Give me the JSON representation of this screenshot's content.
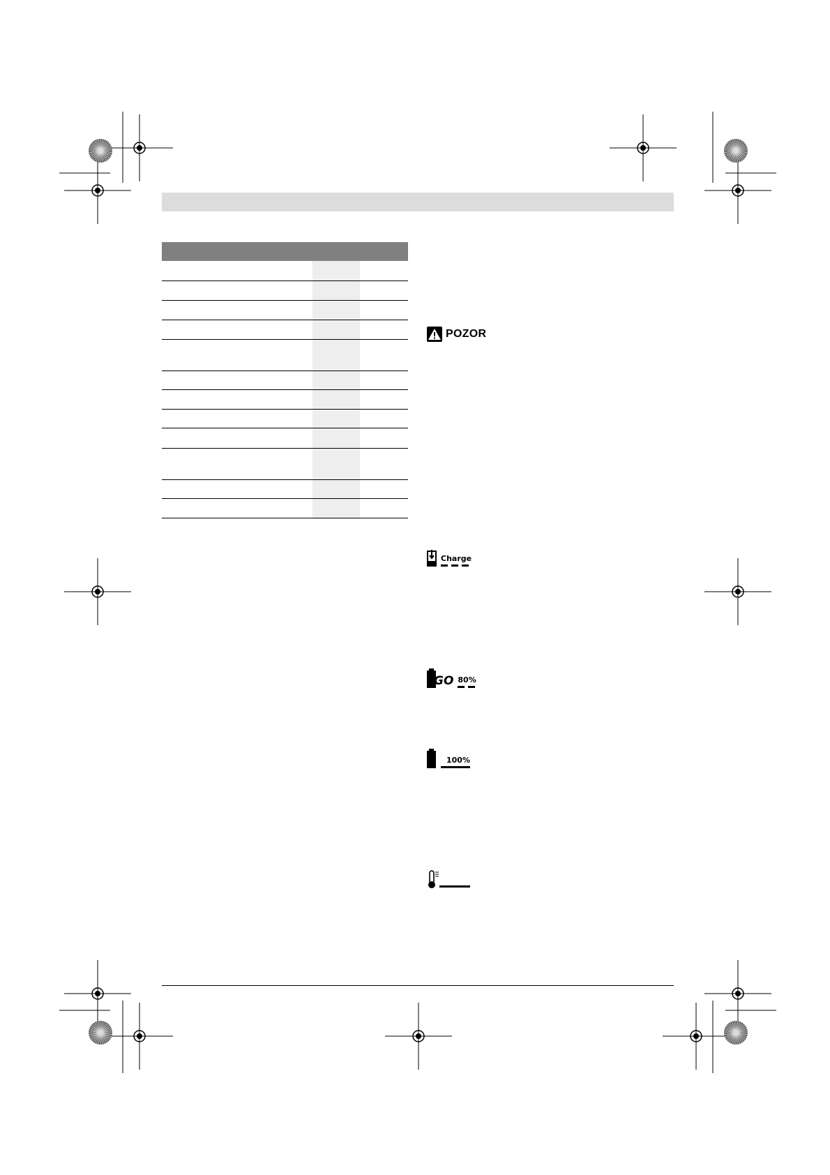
{
  "warning": {
    "label": "POZOR",
    "icon": "warning-triangle-icon"
  },
  "indicators": [
    {
      "icon": "battery-charging-icon",
      "label": "Charge"
    },
    {
      "icon": "battery-go-icon",
      "label_go": "GO",
      "label_percent": "80%"
    },
    {
      "icon": "battery-full-icon",
      "label": "100%"
    },
    {
      "icon": "thermometer-icon"
    }
  ],
  "table": {
    "rows": 13
  }
}
